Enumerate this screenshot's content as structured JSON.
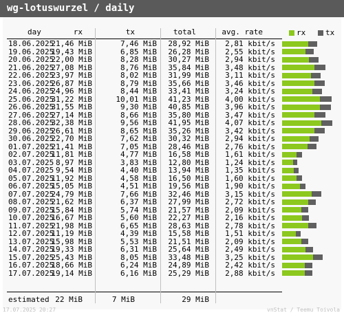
{
  "title": "wg-lotuswurzel / daily",
  "headers": {
    "day": "day",
    "rx": "rx",
    "tx": "tx",
    "total": "total",
    "avg_rate": "avg. rate"
  },
  "legend": {
    "rx_label": "rx",
    "tx_label": "tx",
    "rx_color": "#8cc81e",
    "tx_color": "#606060"
  },
  "rows": [
    {
      "day": "18.06.2025",
      "rx": "21,46 MiB",
      "tx": "7,46 MiB",
      "total": "28,92 MiB",
      "rate": "2,81 kbit/s",
      "rx_mib": 21.46,
      "tx_mib": 7.46
    },
    {
      "day": "19.06.2025",
      "rx": "19,43 MiB",
      "tx": "6,85 MiB",
      "total": "26,28 MiB",
      "rate": "2,55 kbit/s",
      "rx_mib": 19.43,
      "tx_mib": 6.85
    },
    {
      "day": "20.06.2025",
      "rx": "22,00 MiB",
      "tx": "8,28 MiB",
      "total": "30,27 MiB",
      "rate": "2,94 kbit/s",
      "rx_mib": 22.0,
      "tx_mib": 8.28
    },
    {
      "day": "21.06.2025",
      "rx": "27,08 MiB",
      "tx": "8,76 MiB",
      "total": "35,84 MiB",
      "rate": "3,48 kbit/s",
      "rx_mib": 27.08,
      "tx_mib": 8.76
    },
    {
      "day": "22.06.2025",
      "rx": "23,97 MiB",
      "tx": "8,02 MiB",
      "total": "31,99 MiB",
      "rate": "3,11 kbit/s",
      "rx_mib": 23.97,
      "tx_mib": 8.02
    },
    {
      "day": "23.06.2025",
      "rx": "26,87 MiB",
      "tx": "8,79 MiB",
      "total": "35,66 MiB",
      "rate": "3,46 kbit/s",
      "rx_mib": 26.87,
      "tx_mib": 8.79
    },
    {
      "day": "24.06.2025",
      "rx": "24,96 MiB",
      "tx": "8,44 MiB",
      "total": "33,41 MiB",
      "rate": "3,24 kbit/s",
      "rx_mib": 24.96,
      "tx_mib": 8.44
    },
    {
      "day": "25.06.2025",
      "rx": "31,22 MiB",
      "tx": "10,01 MiB",
      "total": "41,23 MiB",
      "rate": "4,00 kbit/s",
      "rx_mib": 31.22,
      "tx_mib": 10.01
    },
    {
      "day": "26.06.2025",
      "rx": "31,55 MiB",
      "tx": "9,30 MiB",
      "total": "40,85 MiB",
      "rate": "3,96 kbit/s",
      "rx_mib": 31.55,
      "tx_mib": 9.3
    },
    {
      "day": "27.06.2025",
      "rx": "27,14 MiB",
      "tx": "8,66 MiB",
      "total": "35,80 MiB",
      "rate": "3,47 kbit/s",
      "rx_mib": 27.14,
      "tx_mib": 8.66
    },
    {
      "day": "28.06.2025",
      "rx": "32,38 MiB",
      "tx": "9,56 MiB",
      "total": "41,95 MiB",
      "rate": "4,07 kbit/s",
      "rx_mib": 32.38,
      "tx_mib": 9.56
    },
    {
      "day": "29.06.2025",
      "rx": "26,61 MiB",
      "tx": "8,65 MiB",
      "total": "35,26 MiB",
      "rate": "3,42 kbit/s",
      "rx_mib": 26.61,
      "tx_mib": 8.65
    },
    {
      "day": "30.06.2025",
      "rx": "22,70 MiB",
      "tx": "7,62 MiB",
      "total": "30,32 MiB",
      "rate": "2,94 kbit/s",
      "rx_mib": 22.7,
      "tx_mib": 7.62
    },
    {
      "day": "01.07.2025",
      "rx": "21,41 MiB",
      "tx": "7,05 MiB",
      "total": "28,46 MiB",
      "rate": "2,76 kbit/s",
      "rx_mib": 21.41,
      "tx_mib": 7.05
    },
    {
      "day": "02.07.2025",
      "rx": "11,81 MiB",
      "tx": "4,77 MiB",
      "total": "16,58 MiB",
      "rate": "1,61 kbit/s",
      "rx_mib": 11.81,
      "tx_mib": 4.77
    },
    {
      "day": "03.07.2025",
      "rx": "8,97 MiB",
      "tx": "3,83 MiB",
      "total": "12,80 MiB",
      "rate": "1,24 kbit/s",
      "rx_mib": 8.97,
      "tx_mib": 3.83
    },
    {
      "day": "04.07.2025",
      "rx": "9,54 MiB",
      "tx": "4,40 MiB",
      "total": "13,94 MiB",
      "rate": "1,35 kbit/s",
      "rx_mib": 9.54,
      "tx_mib": 4.4
    },
    {
      "day": "05.07.2025",
      "rx": "11,92 MiB",
      "tx": "4,58 MiB",
      "total": "16,50 MiB",
      "rate": "1,60 kbit/s",
      "rx_mib": 11.92,
      "tx_mib": 4.58
    },
    {
      "day": "06.07.2025",
      "rx": "15,05 MiB",
      "tx": "4,51 MiB",
      "total": "19,56 MiB",
      "rate": "1,90 kbit/s",
      "rx_mib": 15.05,
      "tx_mib": 4.51
    },
    {
      "day": "07.07.2025",
      "rx": "24,79 MiB",
      "tx": "7,66 MiB",
      "total": "32,46 MiB",
      "rate": "3,15 kbit/s",
      "rx_mib": 24.79,
      "tx_mib": 7.66
    },
    {
      "day": "08.07.2025",
      "rx": "21,62 MiB",
      "tx": "6,37 MiB",
      "total": "27,99 MiB",
      "rate": "2,72 kbit/s",
      "rx_mib": 21.62,
      "tx_mib": 6.37
    },
    {
      "day": "09.07.2025",
      "rx": "15,84 MiB",
      "tx": "5,74 MiB",
      "total": "21,57 MiB",
      "rate": "2,09 kbit/s",
      "rx_mib": 15.84,
      "tx_mib": 5.74
    },
    {
      "day": "10.07.2025",
      "rx": "16,67 MiB",
      "tx": "5,60 MiB",
      "total": "22,27 MiB",
      "rate": "2,16 kbit/s",
      "rx_mib": 16.67,
      "tx_mib": 5.6
    },
    {
      "day": "11.07.2025",
      "rx": "21,98 MiB",
      "tx": "6,65 MiB",
      "total": "28,63 MiB",
      "rate": "2,78 kbit/s",
      "rx_mib": 21.98,
      "tx_mib": 6.65
    },
    {
      "day": "12.07.2025",
      "rx": "11,19 MiB",
      "tx": "4,39 MiB",
      "total": "15,58 MiB",
      "rate": "1,51 kbit/s",
      "rx_mib": 11.19,
      "tx_mib": 4.39
    },
    {
      "day": "13.07.2025",
      "rx": "15,98 MiB",
      "tx": "5,53 MiB",
      "total": "21,51 MiB",
      "rate": "2,09 kbit/s",
      "rx_mib": 15.98,
      "tx_mib": 5.53
    },
    {
      "day": "14.07.2025",
      "rx": "19,33 MiB",
      "tx": "6,31 MiB",
      "total": "25,64 MiB",
      "rate": "2,49 kbit/s",
      "rx_mib": 19.33,
      "tx_mib": 6.31
    },
    {
      "day": "15.07.2025",
      "rx": "25,43 MiB",
      "tx": "8,05 MiB",
      "total": "33,48 MiB",
      "rate": "3,25 kbit/s",
      "rx_mib": 25.43,
      "tx_mib": 8.05
    },
    {
      "day": "16.07.2025",
      "rx": "18,66 MiB",
      "tx": "6,24 MiB",
      "total": "24,89 MiB",
      "rate": "2,42 kbit/s",
      "rx_mib": 18.66,
      "tx_mib": 6.24
    },
    {
      "day": "17.07.2025",
      "rx": "19,14 MiB",
      "tx": "6,16 MiB",
      "total": "25,29 MiB",
      "rate": "2,88 kbit/s",
      "rx_mib": 19.14,
      "tx_mib": 6.16
    }
  ],
  "estimated": {
    "label": "estimated",
    "rx": "22 MiB",
    "tx": "7 MiB",
    "total": "29 MiB"
  },
  "footer": {
    "timestamp": "17.07.2025 20:27",
    "credit": "vnStat / Teemu Toivola"
  },
  "chart_data": {
    "type": "bar",
    "categories": [
      "18.06.2025",
      "19.06.2025",
      "20.06.2025",
      "21.06.2025",
      "22.06.2025",
      "23.06.2025",
      "24.06.2025",
      "25.06.2025",
      "26.06.2025",
      "27.06.2025",
      "28.06.2025",
      "29.06.2025",
      "30.06.2025",
      "01.07.2025",
      "02.07.2025",
      "03.07.2025",
      "04.07.2025",
      "05.07.2025",
      "06.07.2025",
      "07.07.2025",
      "08.07.2025",
      "09.07.2025",
      "10.07.2025",
      "11.07.2025",
      "12.07.2025",
      "13.07.2025",
      "14.07.2025",
      "15.07.2025",
      "16.07.2025",
      "17.07.2025"
    ],
    "series": [
      {
        "name": "rx",
        "values": [
          21.46,
          19.43,
          22.0,
          27.08,
          23.97,
          26.87,
          24.96,
          31.22,
          31.55,
          27.14,
          32.38,
          26.61,
          22.7,
          21.41,
          11.81,
          8.97,
          9.54,
          11.92,
          15.05,
          24.79,
          21.62,
          15.84,
          16.67,
          21.98,
          11.19,
          15.98,
          19.33,
          25.43,
          18.66,
          19.14
        ]
      },
      {
        "name": "tx",
        "values": [
          7.46,
          6.85,
          8.28,
          8.76,
          8.02,
          8.79,
          8.44,
          10.01,
          9.3,
          8.66,
          9.56,
          8.65,
          7.62,
          7.05,
          4.77,
          3.83,
          4.4,
          4.58,
          4.51,
          7.66,
          6.37,
          5.74,
          5.6,
          6.65,
          4.39,
          5.53,
          6.31,
          8.05,
          6.24,
          6.16
        ]
      }
    ],
    "stacked": true,
    "orientation": "horizontal"
  }
}
